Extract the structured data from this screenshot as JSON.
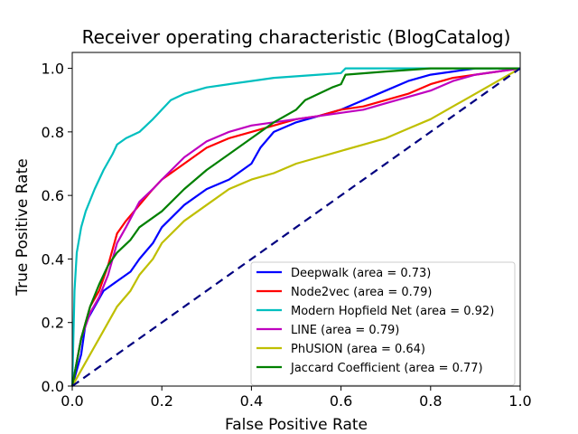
{
  "chart_data": {
    "type": "line",
    "title": "Receiver operating characteristic (BlogCatalog)",
    "xlabel": "False Positive Rate",
    "ylabel": "True Positive Rate",
    "xlim": [
      0.0,
      1.0
    ],
    "ylim": [
      0.0,
      1.05
    ],
    "xticks": [
      "0.0",
      "0.2",
      "0.4",
      "0.6",
      "0.8",
      "1.0"
    ],
    "yticks": [
      "0.0",
      "0.2",
      "0.4",
      "0.6",
      "0.8",
      "1.0"
    ],
    "grid": false,
    "legend_position": "lower-right",
    "series": [
      {
        "name": "Deepwalk (area = 0.73)",
        "color": "#0000ff",
        "x": [
          0,
          0.02,
          0.03,
          0.05,
          0.07,
          0.1,
          0.13,
          0.15,
          0.18,
          0.2,
          0.25,
          0.3,
          0.35,
          0.4,
          0.42,
          0.45,
          0.5,
          0.55,
          0.6,
          0.65,
          0.7,
          0.75,
          0.8,
          0.85,
          0.9,
          0.95,
          1.0
        ],
        "y": [
          0,
          0.1,
          0.2,
          0.25,
          0.3,
          0.33,
          0.36,
          0.4,
          0.45,
          0.5,
          0.57,
          0.62,
          0.65,
          0.7,
          0.75,
          0.8,
          0.83,
          0.85,
          0.87,
          0.9,
          0.93,
          0.96,
          0.98,
          0.99,
          1.0,
          1.0,
          1.0
        ]
      },
      {
        "name": "Node2vec (area = 0.79)",
        "color": "#ff0000",
        "x": [
          0,
          0.02,
          0.04,
          0.06,
          0.08,
          0.1,
          0.12,
          0.15,
          0.18,
          0.2,
          0.25,
          0.3,
          0.35,
          0.4,
          0.45,
          0.5,
          0.55,
          0.6,
          0.65,
          0.7,
          0.75,
          0.8,
          0.85,
          0.9,
          0.95,
          1.0
        ],
        "y": [
          0,
          0.15,
          0.25,
          0.3,
          0.38,
          0.48,
          0.52,
          0.57,
          0.62,
          0.65,
          0.7,
          0.75,
          0.78,
          0.8,
          0.82,
          0.84,
          0.85,
          0.87,
          0.88,
          0.9,
          0.92,
          0.95,
          0.97,
          0.98,
          0.99,
          1.0
        ]
      },
      {
        "name": "Modern Hopfield Net (area = 0.92)",
        "color": "#00bfbf",
        "x": [
          0,
          0.005,
          0.01,
          0.02,
          0.03,
          0.05,
          0.07,
          0.09,
          0.1,
          0.12,
          0.15,
          0.18,
          0.2,
          0.22,
          0.25,
          0.3,
          0.35,
          0.4,
          0.45,
          0.5,
          0.55,
          0.6,
          0.61,
          0.7,
          0.8,
          0.9,
          1.0
        ],
        "y": [
          0,
          0.3,
          0.42,
          0.5,
          0.55,
          0.62,
          0.68,
          0.73,
          0.76,
          0.78,
          0.8,
          0.84,
          0.87,
          0.9,
          0.92,
          0.94,
          0.95,
          0.96,
          0.97,
          0.975,
          0.98,
          0.985,
          1.0,
          1.0,
          1.0,
          1.0,
          1.0
        ]
      },
      {
        "name": "LINE (area = 0.79)",
        "color": "#bf00bf",
        "x": [
          0,
          0.02,
          0.04,
          0.06,
          0.08,
          0.1,
          0.12,
          0.15,
          0.18,
          0.2,
          0.25,
          0.3,
          0.35,
          0.4,
          0.45,
          0.5,
          0.55,
          0.6,
          0.65,
          0.7,
          0.75,
          0.8,
          0.85,
          0.9,
          0.95,
          1.0
        ],
        "y": [
          0,
          0.15,
          0.23,
          0.28,
          0.35,
          0.45,
          0.5,
          0.58,
          0.62,
          0.65,
          0.72,
          0.77,
          0.8,
          0.82,
          0.83,
          0.84,
          0.85,
          0.86,
          0.87,
          0.89,
          0.91,
          0.93,
          0.96,
          0.98,
          0.99,
          1.0
        ]
      },
      {
        "name": "PhUSION (area = 0.64)",
        "color": "#bfbf00",
        "x": [
          0,
          0.02,
          0.04,
          0.06,
          0.08,
          0.1,
          0.13,
          0.15,
          0.18,
          0.2,
          0.25,
          0.3,
          0.35,
          0.4,
          0.45,
          0.5,
          0.55,
          0.6,
          0.65,
          0.7,
          0.75,
          0.8,
          0.85,
          0.9,
          0.95,
          1.0
        ],
        "y": [
          0,
          0.05,
          0.1,
          0.15,
          0.2,
          0.25,
          0.3,
          0.35,
          0.4,
          0.45,
          0.52,
          0.57,
          0.62,
          0.65,
          0.67,
          0.7,
          0.72,
          0.74,
          0.76,
          0.78,
          0.81,
          0.84,
          0.88,
          0.92,
          0.96,
          1.0
        ]
      },
      {
        "name": "Jaccard Coefficient (area = 0.77)",
        "color": "#008000",
        "x": [
          0,
          0.02,
          0.04,
          0.06,
          0.08,
          0.1,
          0.13,
          0.15,
          0.2,
          0.25,
          0.3,
          0.35,
          0.4,
          0.45,
          0.5,
          0.52,
          0.55,
          0.58,
          0.6,
          0.61,
          0.7,
          0.8,
          0.9,
          1.0
        ],
        "y": [
          0,
          0.15,
          0.25,
          0.32,
          0.38,
          0.42,
          0.46,
          0.5,
          0.55,
          0.62,
          0.68,
          0.73,
          0.78,
          0.83,
          0.87,
          0.9,
          0.92,
          0.94,
          0.95,
          0.98,
          0.99,
          1.0,
          1.0,
          1.0
        ]
      },
      {
        "name": "",
        "color": "#000080",
        "dashed": true,
        "x": [
          0,
          1.0
        ],
        "y": [
          0,
          1.0
        ]
      }
    ]
  }
}
